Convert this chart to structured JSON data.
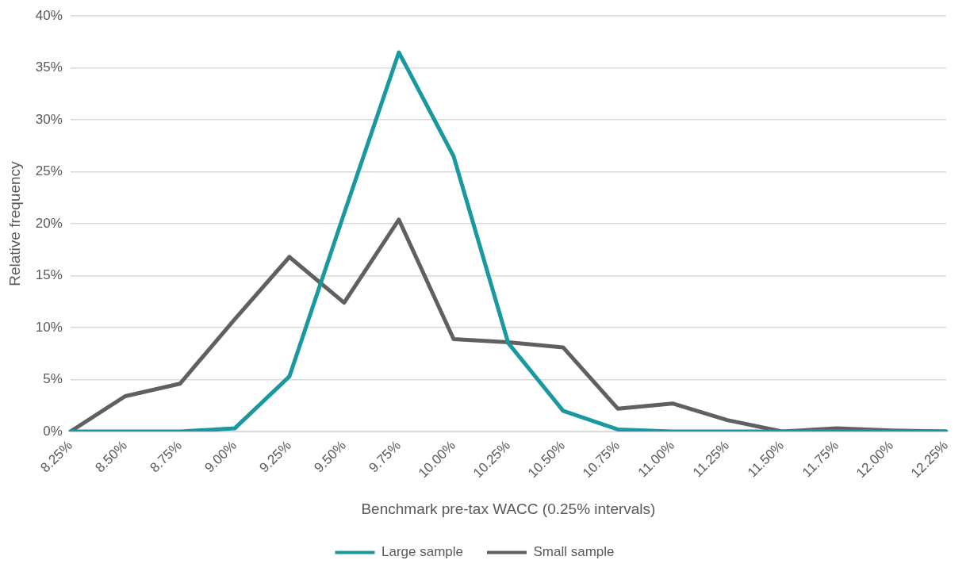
{
  "chart_data": {
    "type": "line",
    "xlabel": "Benchmark pre-tax WACC (0.25% intervals)",
    "ylabel": "Relative frequency",
    "categories": [
      "8.25%",
      "8.50%",
      "8.75%",
      "9.00%",
      "9.25%",
      "9.50%",
      "9.75%",
      "10.00%",
      "10.25%",
      "10.50%",
      "10.75%",
      "11.00%",
      "11.25%",
      "11.50%",
      "11.75%",
      "12.00%",
      "12.25%"
    ],
    "series": [
      {
        "name": "Large sample",
        "color": "#1a98a0",
        "values": [
          0,
          0,
          0,
          0.3,
          5.3,
          21,
          36.5,
          26.5,
          8.5,
          2.0,
          0.2,
          0,
          0,
          0,
          0,
          0,
          0
        ]
      },
      {
        "name": "Small sample",
        "color": "#5f6064",
        "values": [
          0,
          3.4,
          4.6,
          10.8,
          16.8,
          12.4,
          20.4,
          8.9,
          8.6,
          8.1,
          2.2,
          2.7,
          1.1,
          0,
          0.3,
          0.1,
          0
        ]
      }
    ],
    "ylim": [
      0,
      40
    ],
    "yticks": [
      {
        "value": 0,
        "label": "0%"
      },
      {
        "value": 5,
        "label": "5%"
      },
      {
        "value": 10,
        "label": "10%"
      },
      {
        "value": 15,
        "label": "15%"
      },
      {
        "value": 20,
        "label": "20%"
      },
      {
        "value": 25,
        "label": "25%"
      },
      {
        "value": 30,
        "label": "30%"
      },
      {
        "value": 35,
        "label": "35%"
      },
      {
        "value": 40,
        "label": "40%"
      }
    ],
    "grid": "y",
    "legend": "bottom",
    "marker": "none",
    "line_style": "solid"
  }
}
